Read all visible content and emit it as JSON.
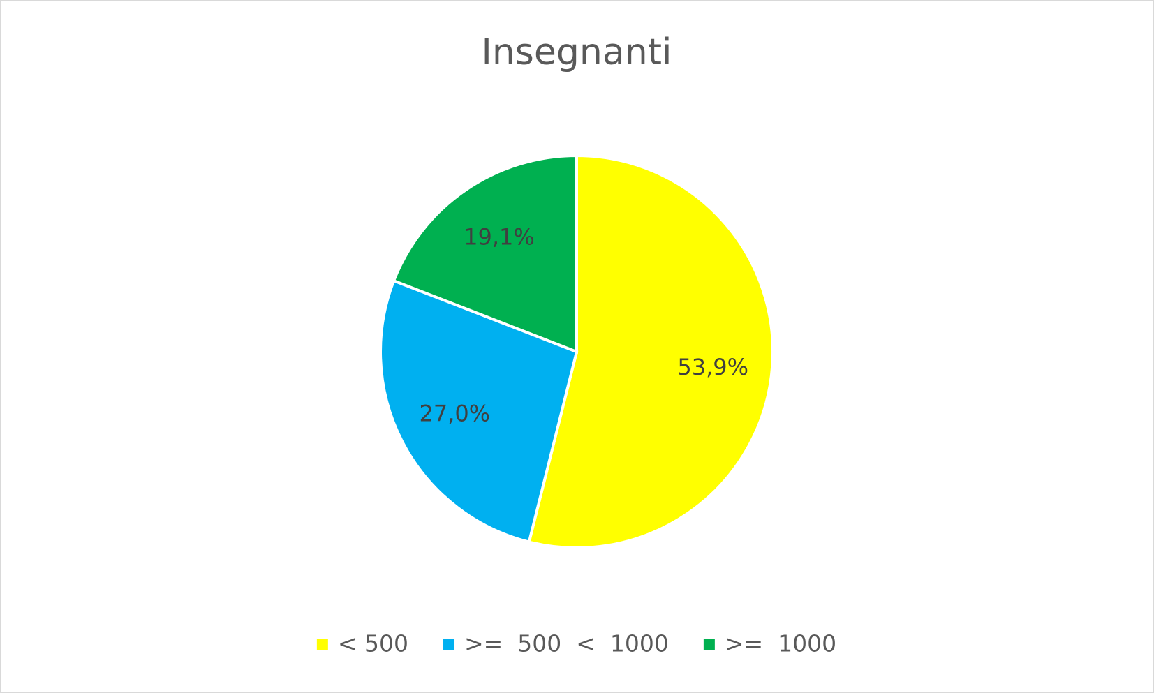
{
  "chart_data": {
    "type": "pie",
    "title": "Insegnanti",
    "categories": [
      "< 500",
      ">=  500  <  1000",
      ">=  1000"
    ],
    "values": [
      53.9,
      27.0,
      19.1
    ],
    "value_labels": [
      "53,9%",
      "27,0%",
      "19,1%"
    ],
    "colors": [
      "#ffff00",
      "#00b0f0",
      "#00b050"
    ],
    "legend": "bottom"
  }
}
